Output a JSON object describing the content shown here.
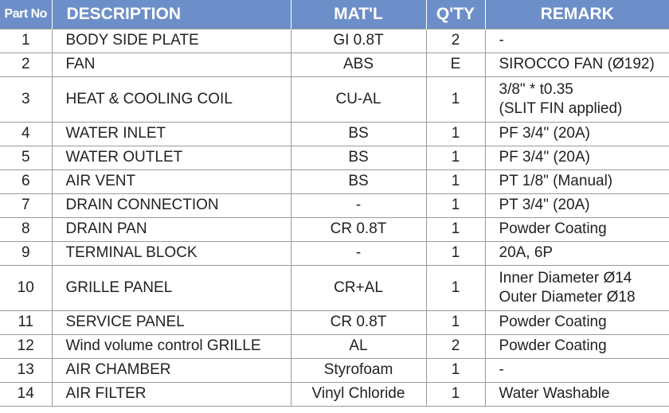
{
  "headers": [
    "Part No",
    "DESCRIPTION",
    "MAT'L",
    "Q'TY",
    "REMARK"
  ],
  "rows": [
    {
      "no": "1",
      "desc": "BODY SIDE PLATE",
      "mat": "GI 0.8T",
      "qty": "2",
      "remark": [
        "-"
      ]
    },
    {
      "no": "2",
      "desc": "FAN",
      "mat": "ABS",
      "qty": "E",
      "remark": [
        "SIROCCO FAN (Ø192)"
      ]
    },
    {
      "no": "3",
      "desc": "HEAT & COOLING COIL",
      "mat": "CU-AL",
      "qty": "1",
      "remark": [
        "3/8\" * t0.35",
        "(SLIT FIN applied)"
      ]
    },
    {
      "no": "4",
      "desc": "WATER INLET",
      "mat": "BS",
      "qty": "1",
      "remark": [
        "PF 3/4\" (20A)"
      ]
    },
    {
      "no": "5",
      "desc": "WATER OUTLET",
      "mat": "BS",
      "qty": "1",
      "remark": [
        "PF 3/4\" (20A)"
      ]
    },
    {
      "no": "6",
      "desc": "AIR VENT",
      "mat": "BS",
      "qty": "1",
      "remark": [
        "PT 1/8\" (Manual)"
      ]
    },
    {
      "no": "7",
      "desc": "DRAIN CONNECTION",
      "mat": "-",
      "qty": "1",
      "remark": [
        "PT 3/4\" (20A)"
      ]
    },
    {
      "no": "8",
      "desc": "DRAIN PAN",
      "mat": "CR 0.8T",
      "qty": "1",
      "remark": [
        "Powder Coating"
      ]
    },
    {
      "no": "9",
      "desc": "TERMINAL BLOCK",
      "mat": "-",
      "qty": "1",
      "remark": [
        "20A, 6P"
      ]
    },
    {
      "no": "10",
      "desc": "GRILLE PANEL",
      "mat": "CR+AL",
      "qty": "1",
      "remark": [
        "Inner Diameter Ø14",
        "Outer Diameter Ø18"
      ]
    },
    {
      "no": "11",
      "desc": "SERVICE PANEL",
      "mat": "CR 0.8T",
      "qty": "1",
      "remark": [
        "Powder Coating"
      ]
    },
    {
      "no": "12",
      "desc": "Wind volume control GRILLE",
      "mat": "AL",
      "qty": "2",
      "remark": [
        "Powder Coating"
      ]
    },
    {
      "no": "13",
      "desc": "AIR CHAMBER",
      "mat": "Styrofoam",
      "qty": "1",
      "remark": [
        "-"
      ]
    },
    {
      "no": "14",
      "desc": "AIR FILTER",
      "mat": "Vinyl Chloride",
      "qty": "1",
      "remark": [
        "Water Washable"
      ]
    }
  ],
  "colors": {
    "header_bg": "#6d8fc9",
    "header_text": "#ffffff",
    "grid": "#9a9a9a",
    "text": "#222222"
  }
}
